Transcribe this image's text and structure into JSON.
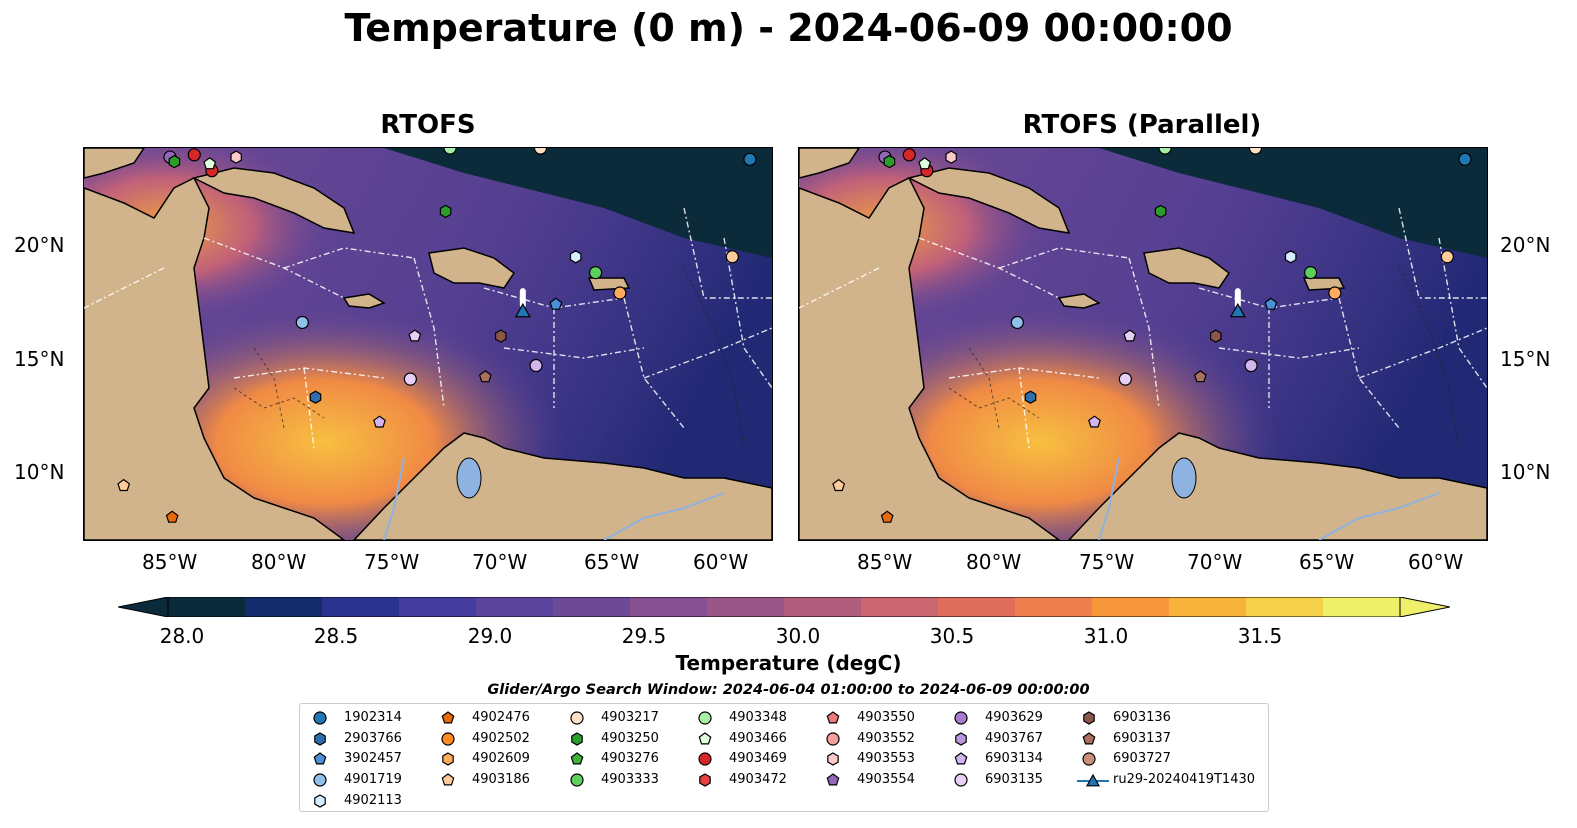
{
  "title": "Temperature (0 m) - 2024-06-09 00:00:00",
  "panels": [
    {
      "title": "RTOFS"
    },
    {
      "title": "RTOFS (Parallel)"
    }
  ],
  "lat_ticks": [
    "20°N",
    "15°N",
    "10°N"
  ],
  "lon_ticks": [
    "85°W",
    "80°W",
    "75°W",
    "70°W",
    "65°W",
    "60°W"
  ],
  "colorbar": {
    "label": "Temperature (degC)",
    "ticks": [
      "28.0",
      "28.5",
      "29.0",
      "29.5",
      "30.0",
      "30.5",
      "31.0",
      "31.5"
    ],
    "colors": [
      "#0b2a3a",
      "#142c6b",
      "#2b3391",
      "#453a9e",
      "#5b449c",
      "#6d4a96",
      "#84508f",
      "#9a5686",
      "#b05d7c",
      "#c96670",
      "#e06e5f",
      "#f07f4f",
      "#f7983c",
      "#f8b33a",
      "#f5d14a",
      "#eef06a"
    ]
  },
  "search_window": "Glider/Argo Search Window: 2024-06-04 01:00:00 to 2024-06-09 00:00:00",
  "legend": [
    [
      {
        "label": "1902314",
        "marker": "circle",
        "color": "#1f77b4"
      },
      {
        "label": "2903766",
        "marker": "hexagon",
        "color": "#2f6fad"
      },
      {
        "label": "3902457",
        "marker": "pentagon",
        "color": "#4a90d9"
      },
      {
        "label": "4901719",
        "marker": "circle",
        "color": "#8fc1ea"
      },
      {
        "label": "4902113",
        "marker": "hexagon",
        "color": "#d6ecff"
      }
    ],
    [
      {
        "label": "4902476",
        "marker": "pentagon",
        "color": "#e8690b"
      },
      {
        "label": "4902502",
        "marker": "circle",
        "color": "#ff8a1f"
      },
      {
        "label": "4902609",
        "marker": "hexagon",
        "color": "#ffad5c"
      },
      {
        "label": "4903186",
        "marker": "pentagon",
        "color": "#ffcc99"
      }
    ],
    [
      {
        "label": "4903217",
        "marker": "circle",
        "color": "#ffe0c4"
      },
      {
        "label": "4903250",
        "marker": "hexagon",
        "color": "#2a9d2a"
      },
      {
        "label": "4903276",
        "marker": "pentagon",
        "color": "#3cb43c"
      },
      {
        "label": "4903333",
        "marker": "circle",
        "color": "#5ccf5c"
      }
    ],
    [
      {
        "label": "4903348",
        "marker": "circle",
        "color": "#a6f0a6"
      },
      {
        "label": "4903466",
        "marker": "pentagon",
        "color": "#e1ffe1"
      },
      {
        "label": "4903469",
        "marker": "circle",
        "color": "#d62728"
      },
      {
        "label": "4903472",
        "marker": "hexagon",
        "color": "#e8413f"
      }
    ],
    [
      {
        "label": "4903550",
        "marker": "pentagon",
        "color": "#f07a7a"
      },
      {
        "label": "4903552",
        "marker": "circle",
        "color": "#f5a09c"
      },
      {
        "label": "4903553",
        "marker": "hexagon",
        "color": "#fcc8c8"
      },
      {
        "label": "4903554",
        "marker": "pentagon",
        "color": "#9467bd"
      }
    ],
    [
      {
        "label": "4903629",
        "marker": "circle",
        "color": "#a77ccf"
      },
      {
        "label": "4903767",
        "marker": "hexagon",
        "color": "#bb95dd"
      },
      {
        "label": "6903134",
        "marker": "pentagon",
        "color": "#d3b5ee"
      },
      {
        "label": "6903135",
        "marker": "circle",
        "color": "#e6d0f7"
      }
    ],
    [
      {
        "label": "6903136",
        "marker": "hexagon",
        "color": "#8c564b"
      },
      {
        "label": "6903137",
        "marker": "pentagon",
        "color": "#a8715f"
      },
      {
        "label": "6903727",
        "marker": "circle",
        "color": "#c98f7a"
      },
      {
        "label": "ru29-20240419T1430",
        "marker": "triangle-line",
        "color": "#1f77b4"
      }
    ]
  ],
  "floats": [
    {
      "lon": -85.1,
      "lat": 23.9,
      "marker": "circle",
      "color": "#9467bd"
    },
    {
      "lon": -84.9,
      "lat": 23.7,
      "marker": "hexagon",
      "color": "#2a9d2a"
    },
    {
      "lon": -84.0,
      "lat": 24.0,
      "marker": "circle",
      "color": "#d62728"
    },
    {
      "lon": -83.2,
      "lat": 23.3,
      "marker": "circle",
      "color": "#d62728"
    },
    {
      "lon": -83.3,
      "lat": 23.6,
      "marker": "pentagon",
      "color": "#e1ffe1"
    },
    {
      "lon": -82.1,
      "lat": 23.9,
      "marker": "hexagon",
      "color": "#fcc8c8"
    },
    {
      "lon": -72.4,
      "lat": 24.3,
      "marker": "circle",
      "color": "#a6f0a6"
    },
    {
      "lon": -72.6,
      "lat": 21.5,
      "marker": "hexagon",
      "color": "#2a9d2a"
    },
    {
      "lon": -68.3,
      "lat": 24.3,
      "marker": "circle",
      "color": "#ffe0c4"
    },
    {
      "lon": -58.8,
      "lat": 23.8,
      "marker": "circle",
      "color": "#1f77b4"
    },
    {
      "lon": -66.7,
      "lat": 19.5,
      "marker": "hexagon",
      "color": "#d6ecff"
    },
    {
      "lon": -65.8,
      "lat": 18.8,
      "marker": "circle",
      "color": "#5ccf5c"
    },
    {
      "lon": -64.7,
      "lat": 17.9,
      "marker": "circle",
      "color": "#ffad5c"
    },
    {
      "lon": -59.6,
      "lat": 19.5,
      "marker": "circle",
      "color": "#ffcc99"
    },
    {
      "lon": -67.6,
      "lat": 17.4,
      "marker": "pentagon",
      "color": "#4a90d9"
    },
    {
      "lon": -79.1,
      "lat": 16.6,
      "marker": "circle",
      "color": "#8fc1ea"
    },
    {
      "lon": -74.0,
      "lat": 16.0,
      "marker": "pentagon",
      "color": "#e6d0f7"
    },
    {
      "lon": -70.1,
      "lat": 16.0,
      "marker": "hexagon",
      "color": "#8c564b"
    },
    {
      "lon": -74.2,
      "lat": 14.1,
      "marker": "circle",
      "color": "#e6d0f7"
    },
    {
      "lon": -70.8,
      "lat": 14.2,
      "marker": "pentagon",
      "color": "#a8715f"
    },
    {
      "lon": -68.5,
      "lat": 14.7,
      "marker": "circle",
      "color": "#d3b5ee"
    },
    {
      "lon": -78.5,
      "lat": 13.3,
      "marker": "hexagon",
      "color": "#2f6fad"
    },
    {
      "lon": -75.6,
      "lat": 12.2,
      "marker": "pentagon",
      "color": "#d3b5ee"
    },
    {
      "lon": -87.2,
      "lat": 9.4,
      "marker": "pentagon",
      "color": "#ffcc99"
    },
    {
      "lon": -85.0,
      "lat": 8.0,
      "marker": "pentagon",
      "color": "#e8690b"
    }
  ],
  "glider": {
    "lon": -69.1,
    "lat": 17.1,
    "color": "#1f77b4"
  }
}
